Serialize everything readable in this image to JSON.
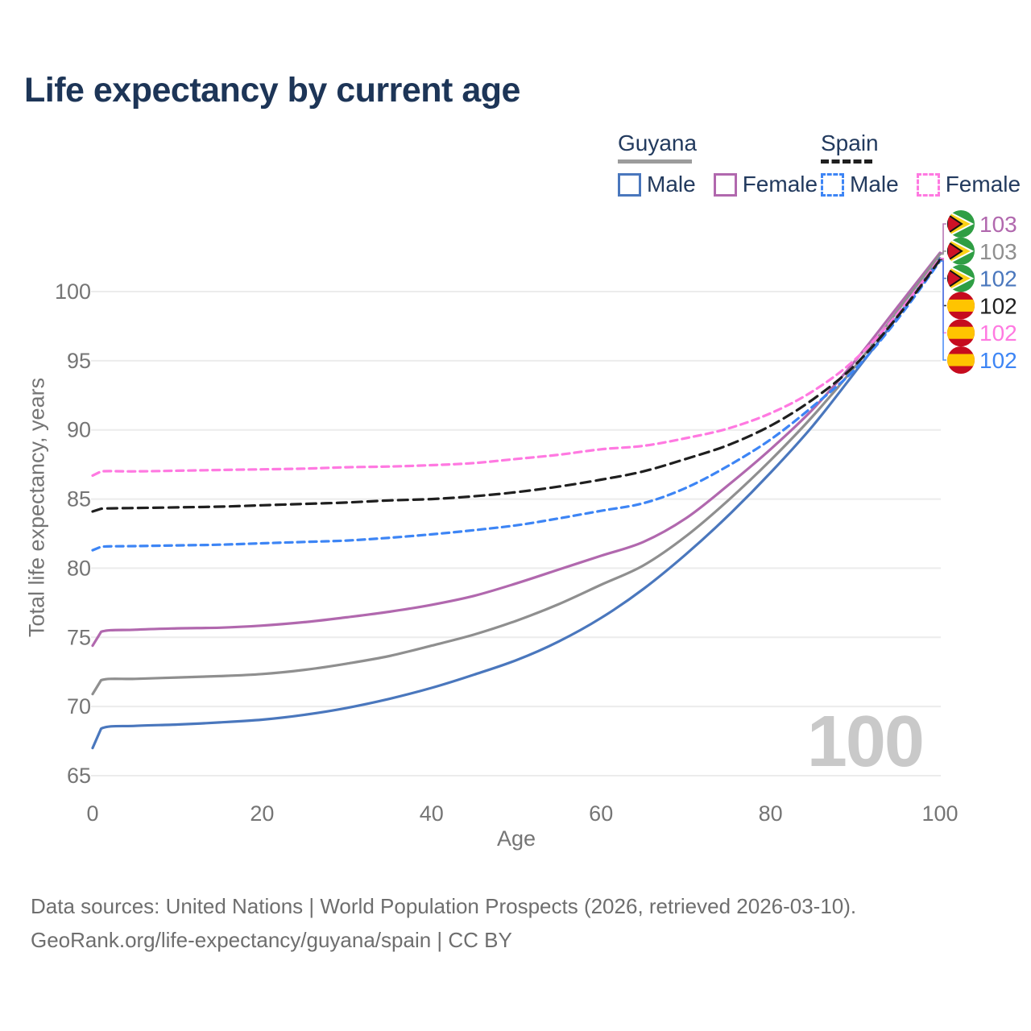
{
  "title": "Life expectancy by current age",
  "watermark": "100",
  "legend": {
    "groups": [
      {
        "name": "Guyana",
        "line_style": "solid",
        "underline_color": "#9c9c9c",
        "items": [
          {
            "label": "Male",
            "color": "#4a77bd"
          },
          {
            "label": "Female",
            "color": "#b168ae"
          }
        ]
      },
      {
        "name": "Spain",
        "line_style": "dashed",
        "underline_color": "#1f1f1f",
        "items": [
          {
            "label": "Male",
            "color": "#3d85f5"
          },
          {
            "label": "Female",
            "color": "#ff79e1"
          }
        ]
      }
    ]
  },
  "footer": {
    "line1": "Data sources: United Nations | World Population Prospects (2026, retrieved 2026-03-10).",
    "line2": "GeoRank.org/life-expectancy/guyana/spain | CC BY"
  },
  "chart_data": {
    "type": "line",
    "title": "Life expectancy by current age",
    "xlabel": "Age",
    "ylabel": "Total life expectancy, years",
    "xlim": [
      0,
      100
    ],
    "ylim": [
      65,
      100
    ],
    "xticks": [
      0,
      20,
      40,
      60,
      80,
      100
    ],
    "yticks": [
      65,
      70,
      75,
      80,
      85,
      90,
      95,
      100
    ],
    "grid": true,
    "x": [
      0,
      1,
      5,
      10,
      15,
      20,
      25,
      30,
      35,
      40,
      45,
      50,
      55,
      60,
      65,
      70,
      75,
      80,
      85,
      90,
      95,
      100
    ],
    "series": [
      {
        "name": "Guyana Male",
        "country": "Guyana",
        "color": "#4a77bd",
        "line_style": "solid",
        "values": [
          67.0,
          68.4,
          68.6,
          68.7,
          68.85,
          69.05,
          69.4,
          69.9,
          70.55,
          71.35,
          72.3,
          73.35,
          74.7,
          76.4,
          78.5,
          81.0,
          83.8,
          86.9,
          90.3,
          94.2,
          98.2,
          102.4
        ]
      },
      {
        "name": "Guyana Female",
        "country": "Guyana",
        "color": "#b168ae",
        "line_style": "solid",
        "values": [
          74.4,
          75.4,
          75.55,
          75.65,
          75.7,
          75.85,
          76.1,
          76.45,
          76.85,
          77.35,
          78.0,
          78.9,
          79.9,
          80.9,
          81.9,
          83.6,
          86.0,
          88.6,
          91.5,
          95.0,
          98.9,
          102.8
        ]
      },
      {
        "name": "Guyana",
        "country": "Guyana",
        "color": "#8f8f8f",
        "line_style": "solid",
        "values": [
          70.9,
          71.9,
          72.0,
          72.1,
          72.2,
          72.35,
          72.65,
          73.1,
          73.65,
          74.4,
          75.2,
          76.2,
          77.4,
          78.8,
          80.2,
          82.3,
          84.9,
          87.8,
          91.0,
          94.6,
          98.6,
          102.7
        ]
      },
      {
        "name": "Spain Male",
        "country": "Spain",
        "color": "#3d85f5",
        "line_style": "dashed",
        "values": [
          81.3,
          81.55,
          81.6,
          81.65,
          81.7,
          81.8,
          81.9,
          82.0,
          82.2,
          82.45,
          82.75,
          83.1,
          83.6,
          84.15,
          84.7,
          85.8,
          87.4,
          89.3,
          91.7,
          94.4,
          98.0,
          102.2
        ]
      },
      {
        "name": "Spain Female",
        "country": "Spain",
        "color": "#ff79e1",
        "line_style": "dashed",
        "values": [
          86.7,
          87.0,
          87.0,
          87.05,
          87.1,
          87.15,
          87.2,
          87.3,
          87.35,
          87.45,
          87.6,
          87.9,
          88.2,
          88.6,
          88.85,
          89.4,
          90.1,
          91.2,
          92.8,
          95.1,
          98.4,
          102.4
        ]
      },
      {
        "name": "Spain",
        "country": "Spain",
        "color": "#1f1f1f",
        "line_style": "dashed",
        "values": [
          84.1,
          84.3,
          84.35,
          84.4,
          84.45,
          84.55,
          84.65,
          84.75,
          84.9,
          85.0,
          85.2,
          85.5,
          85.9,
          86.4,
          87.0,
          87.9,
          88.9,
          90.3,
          92.2,
          94.7,
          98.2,
          102.3
        ]
      }
    ],
    "right_labels": [
      {
        "series": "Guyana Female",
        "value": "103",
        "flag": "guyana"
      },
      {
        "series": "Guyana",
        "value": "103",
        "flag": "guyana"
      },
      {
        "series": "Guyana Male",
        "value": "102",
        "flag": "guyana"
      },
      {
        "series": "Spain",
        "value": "102",
        "flag": "spain"
      },
      {
        "series": "Spain Female",
        "value": "102",
        "flag": "spain"
      },
      {
        "series": "Spain Male",
        "value": "102",
        "flag": "spain"
      }
    ],
    "legend_position": "top-right"
  }
}
